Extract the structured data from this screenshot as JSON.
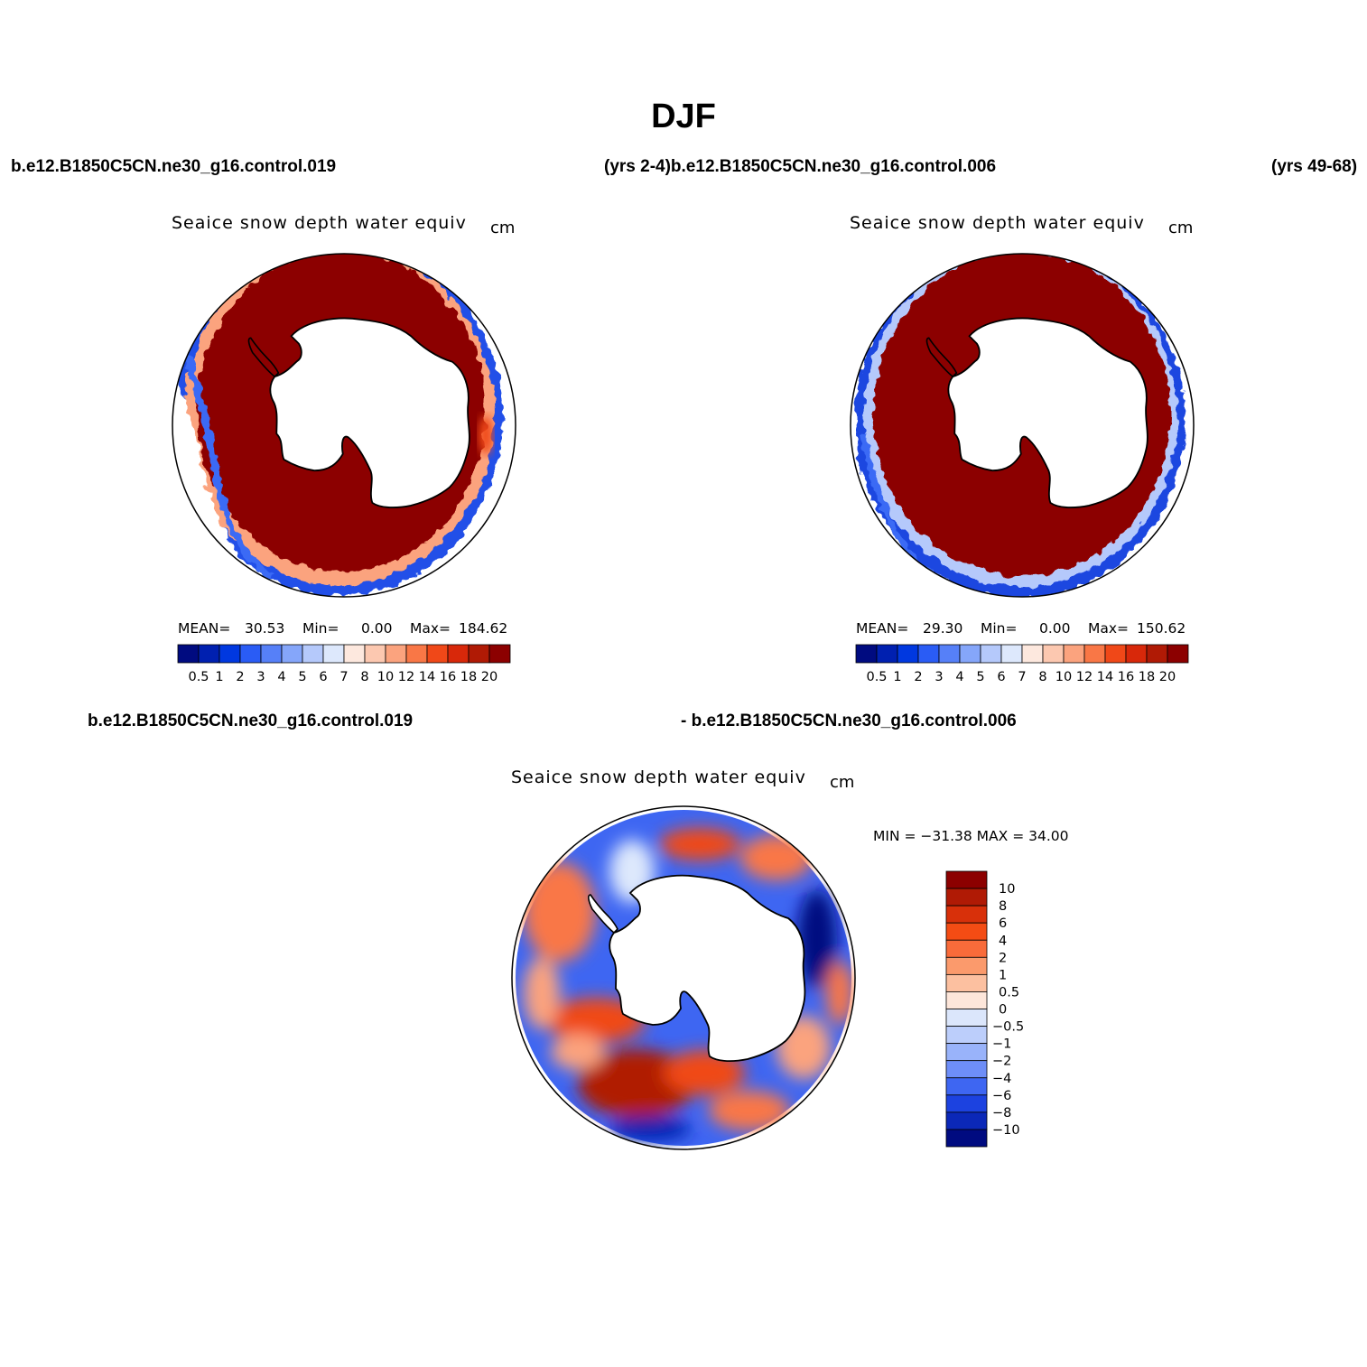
{
  "main_title": "DJF",
  "header": {
    "case1": "b.e12.B1850C5CN.ne30_g16.control.019",
    "years1_case2": "(yrs 2-4)b.e12.B1850C5CN.ne30_g16.control.006",
    "years2": "(yrs 49-68)",
    "diff_case1": "b.e12.B1850C5CN.ne30_g16.control.019",
    "diff_case2": "- b.e12.B1850C5CN.ne30_g16.control.006"
  },
  "panels": [
    {
      "title": "Seaice snow depth water equiv",
      "units": "cm",
      "stats": {
        "mean_label": "MEAN=",
        "mean": "30.53",
        "min_label": "Min=",
        "min": "0.00",
        "max_label": "Max=",
        "max": "184.62"
      }
    },
    {
      "title": "Seaice snow depth water equiv",
      "units": "cm",
      "stats": {
        "mean_label": "MEAN=",
        "mean": "29.30",
        "min_label": "Min=",
        "min": "0.00",
        "max_label": "Max=",
        "max": "150.62"
      }
    }
  ],
  "diff_panel": {
    "title": "Seaice snow depth water equiv",
    "units": "cm",
    "stats_text": "MIN = −31.38 MAX =   34.00"
  },
  "colorbar_abs": {
    "colors": [
      "#000b80",
      "#0020b0",
      "#0038e0",
      "#2a5cf5",
      "#5680f8",
      "#85a6fa",
      "#b5c9fb",
      "#dde8fc",
      "#fde8de",
      "#fcc8b0",
      "#fba37e",
      "#f97746",
      "#f04818",
      "#d8280a",
      "#b01a05",
      "#8c0000"
    ],
    "labels": [
      "0.5",
      "1",
      "2",
      "3",
      "4",
      "5",
      "6",
      "7",
      "8",
      "10",
      "12",
      "14",
      "16",
      "18",
      "20"
    ]
  },
  "colorbar_diff": {
    "colors": [
      "#8c0000",
      "#b01a05",
      "#d8300a",
      "#f44c14",
      "#f96b3a",
      "#fb9a6c",
      "#fcc0a0",
      "#fde6da",
      "#dbe6fb",
      "#bccefb",
      "#99b3fa",
      "#6e8ef8",
      "#3e66f2",
      "#1c42e0",
      "#0b28b8",
      "#000b80"
    ],
    "labels": [
      "10",
      "8",
      "6",
      "4",
      "2",
      "1",
      "0.5",
      "0",
      "−0.5",
      "−1",
      "−2",
      "−4",
      "−6",
      "−8",
      "−10"
    ]
  }
}
